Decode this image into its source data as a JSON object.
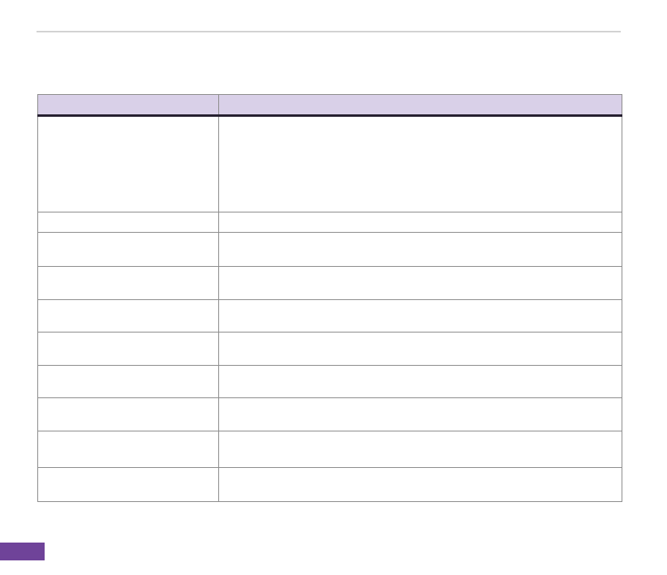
{
  "document": {
    "background_color": "#ffffff",
    "top_rule_color": "#d2d2d2"
  },
  "table": {
    "border_color": "#8d8d8d",
    "header": {
      "background_color": "#d9d0e8",
      "underline_color": "#262030",
      "cells": [
        "",
        ""
      ]
    },
    "rows": [
      {
        "cells": [
          "",
          ""
        ]
      },
      {
        "cells": [
          "",
          ""
        ]
      },
      {
        "cells": [
          "",
          ""
        ]
      },
      {
        "cells": [
          "",
          ""
        ]
      },
      {
        "cells": [
          "",
          ""
        ]
      },
      {
        "cells": [
          "",
          ""
        ]
      },
      {
        "cells": [
          "",
          ""
        ]
      },
      {
        "cells": [
          "",
          ""
        ]
      },
      {
        "cells": [
          "",
          ""
        ]
      },
      {
        "cells": [
          "",
          ""
        ]
      }
    ]
  },
  "footer_badge": {
    "background_color": "#6f4399",
    "label": ""
  }
}
